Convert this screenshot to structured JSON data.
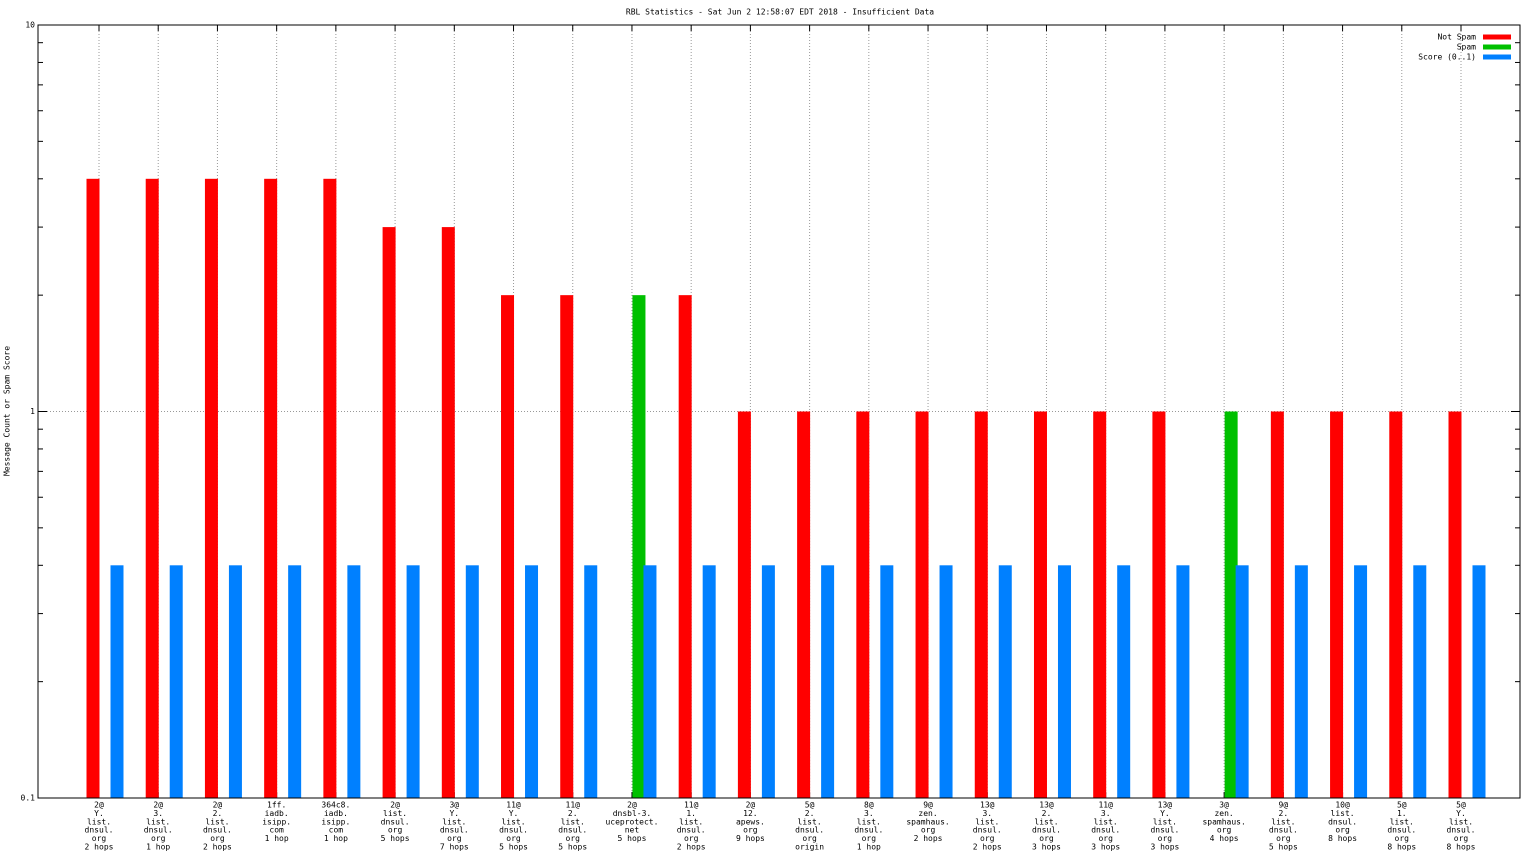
{
  "chart_data": {
    "type": "bar",
    "title": "RBL Statistics - Sat Jun  2 12:58:07 EDT 2018 - Insufficient Data",
    "ylabel": "Message Count or Spam Score",
    "log_y": true,
    "grid": true,
    "legend_position": "top-right",
    "ylim": [
      0.1,
      10
    ],
    "yticks": [
      0.1,
      1,
      10
    ],
    "minor_yticks": [
      0.2,
      0.3,
      0.4,
      0.5,
      0.6,
      0.7,
      0.8,
      0.9,
      2,
      3,
      4,
      5,
      6,
      7,
      8,
      9
    ],
    "categories": [
      [
        "2@",
        "Y.",
        "list.",
        "dnsul.",
        "org",
        "2 hops"
      ],
      [
        "2@",
        "3.",
        "list.",
        "dnsul.",
        "org",
        "1 hop"
      ],
      [
        "2@",
        "2.",
        "list.",
        "dnsul.",
        "org",
        "2 hops"
      ],
      [
        "1ff.",
        "iadb.",
        "isipp.",
        "com",
        "1 hop"
      ],
      [
        "364c8.",
        "iadb.",
        "isipp.",
        "com",
        "1 hop"
      ],
      [
        "2@",
        "list.",
        "dnsul.",
        "org",
        "5 hops"
      ],
      [
        "3@",
        "Y.",
        "list.",
        "dnsul.",
        "org",
        "7 hops"
      ],
      [
        "11@",
        "Y.",
        "list.",
        "dnsul.",
        "org",
        "5 hops"
      ],
      [
        "11@",
        "2.",
        "list.",
        "dnsul.",
        "org",
        "5 hops"
      ],
      [
        "2@",
        "dnsbl-3.",
        "uceprotect.",
        "net",
        "5 hops"
      ],
      [
        "11@",
        "1.",
        "list.",
        "dnsul.",
        "org",
        "2 hops"
      ],
      [
        "2@",
        "12.",
        "apews.",
        "org",
        "9 hops"
      ],
      [
        "5@",
        "2.",
        "list.",
        "dnsul.",
        "org",
        "origin"
      ],
      [
        "8@",
        "3.",
        "list.",
        "dnsul.",
        "org",
        "1 hop"
      ],
      [
        "9@",
        "zen.",
        "spamhaus.",
        "org",
        "2 hops"
      ],
      [
        "13@",
        "3.",
        "list.",
        "dnsul.",
        "org",
        "2 hops"
      ],
      [
        "13@",
        "2.",
        "list.",
        "dnsul.",
        "org",
        "3 hops"
      ],
      [
        "11@",
        "3.",
        "list.",
        "dnsul.",
        "org",
        "3 hops"
      ],
      [
        "13@",
        "Y.",
        "list.",
        "dnsul.",
        "org",
        "3 hops"
      ],
      [
        "3@",
        "zen.",
        "spamhaus.",
        "org",
        "4 hops"
      ],
      [
        "9@",
        "2.",
        "list.",
        "dnsul.",
        "org",
        "5 hops"
      ],
      [
        "10@",
        "list.",
        "dnsul.",
        "org",
        "8 hops"
      ],
      [
        "5@",
        "1.",
        "list.",
        "dnsul.",
        "org",
        "8 hops"
      ],
      [
        "5@",
        "Y.",
        "list.",
        "dnsul.",
        "org",
        "8 hops"
      ]
    ],
    "series": [
      {
        "name": "Not Spam",
        "color": "#ff0000",
        "values": [
          4,
          4,
          4,
          4,
          4,
          3,
          3,
          2,
          2,
          null,
          2,
          1,
          1,
          1,
          1,
          1,
          1,
          1,
          1,
          null,
          1,
          1,
          1,
          1
        ]
      },
      {
        "name": "Spam",
        "color": "#00c000",
        "values": [
          null,
          null,
          null,
          null,
          null,
          null,
          null,
          null,
          null,
          2,
          null,
          null,
          null,
          null,
          null,
          null,
          null,
          null,
          null,
          1,
          null,
          null,
          null,
          null
        ]
      },
      {
        "name": "Score (0..1)",
        "color": "#0080ff",
        "values": [
          0.4,
          0.4,
          0.4,
          0.4,
          0.4,
          0.4,
          0.4,
          0.4,
          0.4,
          0.4,
          0.4,
          0.4,
          0.4,
          0.4,
          0.4,
          0.4,
          0.4,
          0.4,
          0.4,
          0.4,
          0.4,
          0.4,
          0.4,
          0.4
        ]
      }
    ]
  }
}
